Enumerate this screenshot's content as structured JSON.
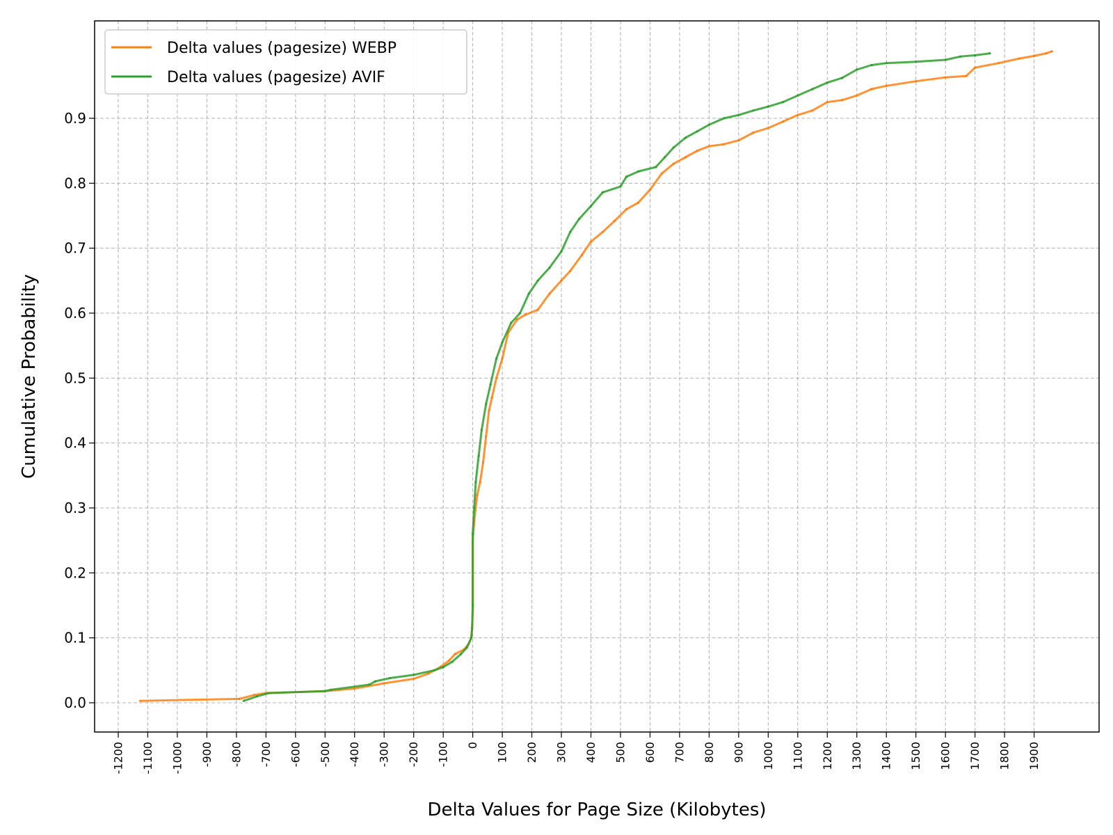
{
  "chart_data": {
    "type": "line",
    "title": "",
    "xlabel": "Delta Values for Page Size (Kilobytes)",
    "ylabel": "Cumulative Probability",
    "xlim": [
      -1280,
      2120
    ],
    "ylim": [
      -0.045,
      1.05
    ],
    "grid": true,
    "legend_position": "top-left",
    "x_ticks": [
      "-1200",
      "-1100",
      "-1000",
      "-900",
      "-800",
      "-700",
      "-600",
      "-500",
      "-400",
      "-300",
      "-200",
      "-100",
      "0",
      "100",
      "200",
      "300",
      "400",
      "500",
      "600",
      "700",
      "800",
      "900",
      "1000",
      "1100",
      "1200",
      "1300",
      "1400",
      "1500",
      "1600",
      "1700",
      "1800",
      "1900"
    ],
    "y_ticks": [
      "0.0",
      "0.1",
      "0.2",
      "0.3",
      "0.4",
      "0.5",
      "0.6",
      "0.7",
      "0.8",
      "0.9"
    ],
    "series": [
      {
        "name": "Delta values (pagesize) WEBP",
        "color": "#ff7f0e",
        "points": [
          [
            -1125,
            0.003
          ],
          [
            -790,
            0.006
          ],
          [
            -740,
            0.012
          ],
          [
            -700,
            0.015
          ],
          [
            -500,
            0.018
          ],
          [
            -400,
            0.022
          ],
          [
            -300,
            0.03
          ],
          [
            -200,
            0.037
          ],
          [
            -150,
            0.045
          ],
          [
            -110,
            0.055
          ],
          [
            -80,
            0.065
          ],
          [
            -60,
            0.075
          ],
          [
            -30,
            0.082
          ],
          [
            -15,
            0.09
          ],
          [
            -5,
            0.1
          ],
          [
            -2,
            0.12
          ],
          [
            0,
            0.15
          ],
          [
            0,
            0.25
          ],
          [
            5,
            0.28
          ],
          [
            15,
            0.32
          ],
          [
            25,
            0.34
          ],
          [
            35,
            0.37
          ],
          [
            45,
            0.41
          ],
          [
            55,
            0.45
          ],
          [
            65,
            0.47
          ],
          [
            80,
            0.5
          ],
          [
            100,
            0.53
          ],
          [
            120,
            0.57
          ],
          [
            150,
            0.59
          ],
          [
            180,
            0.598
          ],
          [
            220,
            0.605
          ],
          [
            260,
            0.63
          ],
          [
            300,
            0.65
          ],
          [
            330,
            0.665
          ],
          [
            370,
            0.69
          ],
          [
            400,
            0.71
          ],
          [
            440,
            0.725
          ],
          [
            480,
            0.742
          ],
          [
            520,
            0.76
          ],
          [
            560,
            0.77
          ],
          [
            600,
            0.79
          ],
          [
            640,
            0.815
          ],
          [
            680,
            0.83
          ],
          [
            720,
            0.84
          ],
          [
            760,
            0.85
          ],
          [
            800,
            0.857
          ],
          [
            850,
            0.86
          ],
          [
            900,
            0.866
          ],
          [
            950,
            0.878
          ],
          [
            1000,
            0.885
          ],
          [
            1050,
            0.895
          ],
          [
            1100,
            0.905
          ],
          [
            1150,
            0.912
          ],
          [
            1200,
            0.925
          ],
          [
            1250,
            0.928
          ],
          [
            1300,
            0.935
          ],
          [
            1350,
            0.945
          ],
          [
            1400,
            0.95
          ],
          [
            1500,
            0.957
          ],
          [
            1600,
            0.963
          ],
          [
            1670,
            0.965
          ],
          [
            1700,
            0.978
          ],
          [
            1780,
            0.985
          ],
          [
            1850,
            0.992
          ],
          [
            1900,
            0.996
          ],
          [
            1940,
            1.0
          ],
          [
            1960,
            1.003
          ]
        ]
      },
      {
        "name": "Delta values (pagesize) AVIF",
        "color": "#2ca02c",
        "points": [
          [
            -775,
            0.003
          ],
          [
            -730,
            0.01
          ],
          [
            -690,
            0.015
          ],
          [
            -500,
            0.018
          ],
          [
            -480,
            0.02
          ],
          [
            -350,
            0.028
          ],
          [
            -330,
            0.033
          ],
          [
            -280,
            0.038
          ],
          [
            -200,
            0.043
          ],
          [
            -130,
            0.05
          ],
          [
            -100,
            0.055
          ],
          [
            -70,
            0.063
          ],
          [
            -40,
            0.075
          ],
          [
            -20,
            0.085
          ],
          [
            -5,
            0.1
          ],
          [
            -2,
            0.115
          ],
          [
            0,
            0.15
          ],
          [
            0,
            0.26
          ],
          [
            5,
            0.3
          ],
          [
            10,
            0.34
          ],
          [
            20,
            0.38
          ],
          [
            30,
            0.42
          ],
          [
            45,
            0.46
          ],
          [
            60,
            0.49
          ],
          [
            80,
            0.53
          ],
          [
            100,
            0.555
          ],
          [
            130,
            0.585
          ],
          [
            160,
            0.6
          ],
          [
            190,
            0.63
          ],
          [
            220,
            0.65
          ],
          [
            260,
            0.67
          ],
          [
            300,
            0.695
          ],
          [
            330,
            0.725
          ],
          [
            360,
            0.745
          ],
          [
            400,
            0.765
          ],
          [
            440,
            0.786
          ],
          [
            500,
            0.795
          ],
          [
            520,
            0.81
          ],
          [
            560,
            0.818
          ],
          [
            620,
            0.825
          ],
          [
            650,
            0.84
          ],
          [
            680,
            0.855
          ],
          [
            720,
            0.87
          ],
          [
            760,
            0.88
          ],
          [
            800,
            0.89
          ],
          [
            850,
            0.9
          ],
          [
            900,
            0.905
          ],
          [
            950,
            0.912
          ],
          [
            1000,
            0.918
          ],
          [
            1050,
            0.925
          ],
          [
            1100,
            0.935
          ],
          [
            1150,
            0.945
          ],
          [
            1200,
            0.955
          ],
          [
            1250,
            0.962
          ],
          [
            1300,
            0.975
          ],
          [
            1350,
            0.982
          ],
          [
            1400,
            0.985
          ],
          [
            1500,
            0.987
          ],
          [
            1600,
            0.99
          ],
          [
            1650,
            0.995
          ],
          [
            1700,
            0.997
          ],
          [
            1750,
            1.0
          ]
        ]
      }
    ]
  }
}
